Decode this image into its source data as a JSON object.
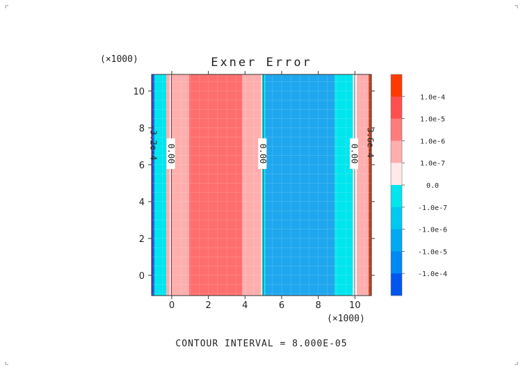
{
  "chart_data": {
    "type": "heatmap",
    "title": "Exner Error",
    "x_multiplier_label": "(×1000)",
    "y_multiplier_label": "(×1000)",
    "xlabel": "",
    "ylabel": "",
    "xlim": [
      -1.1,
      10.9
    ],
    "ylim": [
      -1.1,
      10.9
    ],
    "x_ticks": [
      0,
      2,
      4,
      6,
      8,
      10
    ],
    "y_ticks": [
      0,
      2,
      4,
      6,
      8,
      10
    ],
    "x_tick_labels": [
      "0",
      "2",
      "4",
      "6",
      "8",
      "10"
    ],
    "y_tick_labels": [
      "0",
      "2",
      "4",
      "6",
      "8",
      "10"
    ],
    "grid": true,
    "bands": [
      {
        "x0": -1.1,
        "x1": -0.95,
        "level": "-1.0e-4",
        "color": "#1a4fd6"
      },
      {
        "x0": -0.95,
        "x1": -0.3,
        "level": "-1.0e-7",
        "color": "#00e5ee"
      },
      {
        "x0": -0.3,
        "x1": 0.95,
        "level": "1.0e-7",
        "color": "#ffaeae"
      },
      {
        "x0": 0.95,
        "x1": 3.85,
        "level": "1.0e-6",
        "color": "#ff6e6e"
      },
      {
        "x0": 3.85,
        "x1": 4.9,
        "level": "1.0e-7",
        "color": "#ffaeae"
      },
      {
        "x0": 4.9,
        "x1": 5.1,
        "level": "-1.0e-7",
        "color": "#00e5ee"
      },
      {
        "x0": 5.1,
        "x1": 8.9,
        "level": "-1.0e-6",
        "color": "#1ea7ee"
      },
      {
        "x0": 8.9,
        "x1": 9.9,
        "level": "-1.0e-7",
        "color": "#00e5ee"
      },
      {
        "x0": 9.9,
        "x1": 10.1,
        "level": "0.0",
        "color": "#ffffff"
      },
      {
        "x0": 10.1,
        "x1": 10.75,
        "level": "1.0e-7",
        "color": "#ffaeae"
      },
      {
        "x0": 10.75,
        "x1": 10.9,
        "level": "1.0e-4",
        "color": "#c8401c"
      }
    ],
    "contour_lines": [
      {
        "x": -0.05,
        "label": "0.00",
        "label_y": 6.6
      },
      {
        "x": 4.95,
        "label": "0.00",
        "label_y": 6.6
      },
      {
        "x": 9.95,
        "label": "0.00",
        "label_y": 6.6
      }
    ],
    "edge_labels": [
      {
        "x": -1.02,
        "label": "-3.2e-4",
        "label_y": 7.2
      },
      {
        "x": 10.82,
        "label": "3.6e-4",
        "label_y": 7.2
      }
    ],
    "colorbar": {
      "levels": [
        "1.0e-4",
        "1.0e-5",
        "1.0e-6",
        "1.0e-7",
        "0.0",
        "-1.0e-7",
        "-1.0e-6",
        "-1.0e-5",
        "-1.0e-4"
      ],
      "colors": [
        "#fe3a00",
        "#ff4f4f",
        "#ff7c7c",
        "#ffaeae",
        "#ffe9e9",
        "#00e5ee",
        "#00c8f0",
        "#00a9f2",
        "#0088f4",
        "#0055ee"
      ]
    },
    "footer": "CONTOUR INTERVAL = 8.000E-05"
  }
}
